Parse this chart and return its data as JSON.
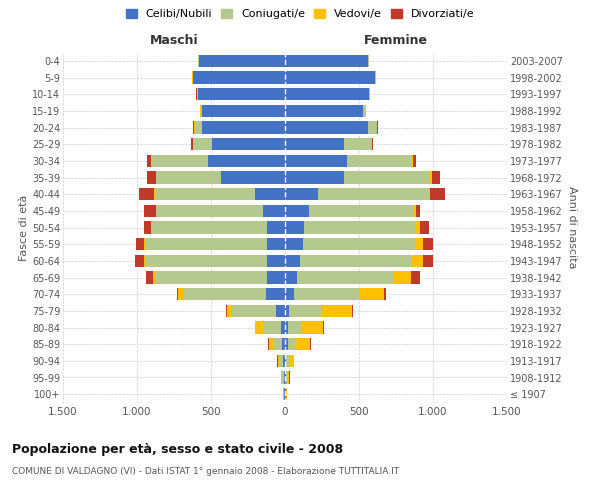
{
  "age_groups": [
    "100+",
    "95-99",
    "90-94",
    "85-89",
    "80-84",
    "75-79",
    "70-74",
    "65-69",
    "60-64",
    "55-59",
    "50-54",
    "45-49",
    "40-44",
    "35-39",
    "30-34",
    "25-29",
    "20-24",
    "15-19",
    "10-14",
    "5-9",
    "0-4"
  ],
  "birth_years": [
    "≤ 1907",
    "1908-1912",
    "1913-1917",
    "1918-1922",
    "1923-1927",
    "1928-1932",
    "1933-1937",
    "1938-1942",
    "1943-1947",
    "1948-1952",
    "1953-1957",
    "1958-1962",
    "1963-1967",
    "1968-1972",
    "1973-1977",
    "1978-1982",
    "1983-1987",
    "1988-1992",
    "1993-1997",
    "1998-2002",
    "2003-2007"
  ],
  "males": {
    "celibi": [
      5,
      10,
      15,
      20,
      30,
      60,
      130,
      120,
      120,
      120,
      120,
      150,
      200,
      430,
      520,
      490,
      560,
      560,
      590,
      620,
      580
    ],
    "coniugati": [
      5,
      10,
      20,
      60,
      120,
      300,
      560,
      750,
      820,
      820,
      780,
      720,
      680,
      440,
      380,
      130,
      50,
      10,
      5,
      5,
      5
    ],
    "vedovi": [
      2,
      5,
      15,
      30,
      50,
      30,
      30,
      20,
      15,
      10,
      5,
      5,
      5,
      5,
      5,
      5,
      5,
      2,
      2,
      2,
      2
    ],
    "divorziati": [
      1,
      2,
      3,
      5,
      5,
      10,
      10,
      50,
      60,
      60,
      50,
      80,
      100,
      60,
      30,
      10,
      5,
      2,
      1,
      1,
      1
    ]
  },
  "females": {
    "nubili": [
      5,
      10,
      10,
      20,
      20,
      30,
      60,
      80,
      100,
      120,
      130,
      160,
      220,
      400,
      420,
      400,
      560,
      530,
      570,
      610,
      560
    ],
    "coniugate": [
      5,
      10,
      20,
      50,
      90,
      220,
      440,
      650,
      760,
      760,
      750,
      710,
      750,
      580,
      440,
      180,
      60,
      15,
      5,
      5,
      5
    ],
    "vedove": [
      2,
      10,
      30,
      100,
      150,
      200,
      170,
      120,
      70,
      50,
      30,
      15,
      10,
      10,
      5,
      5,
      3,
      2,
      1,
      1,
      1
    ],
    "divorziate": [
      1,
      2,
      3,
      5,
      5,
      10,
      10,
      60,
      70,
      70,
      60,
      30,
      100,
      60,
      20,
      10,
      5,
      2,
      1,
      1,
      1
    ]
  },
  "colors": {
    "celibi": "#4472c4",
    "coniugati": "#b5c98e",
    "vedovi": "#ffc000",
    "divorziati": "#c0392b"
  },
  "title": "Popolazione per età, sesso e stato civile - 2008",
  "subtitle": "COMUNE DI VALDAGNO (VI) - Dati ISTAT 1° gennaio 2008 - Elaborazione TUTTITALIA.IT",
  "xlabel_maschi": "Maschi",
  "xlabel_femmine": "Femmine",
  "ylabel_left": "Fasce di età",
  "ylabel_right": "Anni di nascita",
  "legend_labels": [
    "Celibi/Nubili",
    "Coniugati/e",
    "Vedovi/e",
    "Divorziati/e"
  ],
  "xlim": 1500,
  "background_color": "#ffffff",
  "bar_height": 0.75
}
